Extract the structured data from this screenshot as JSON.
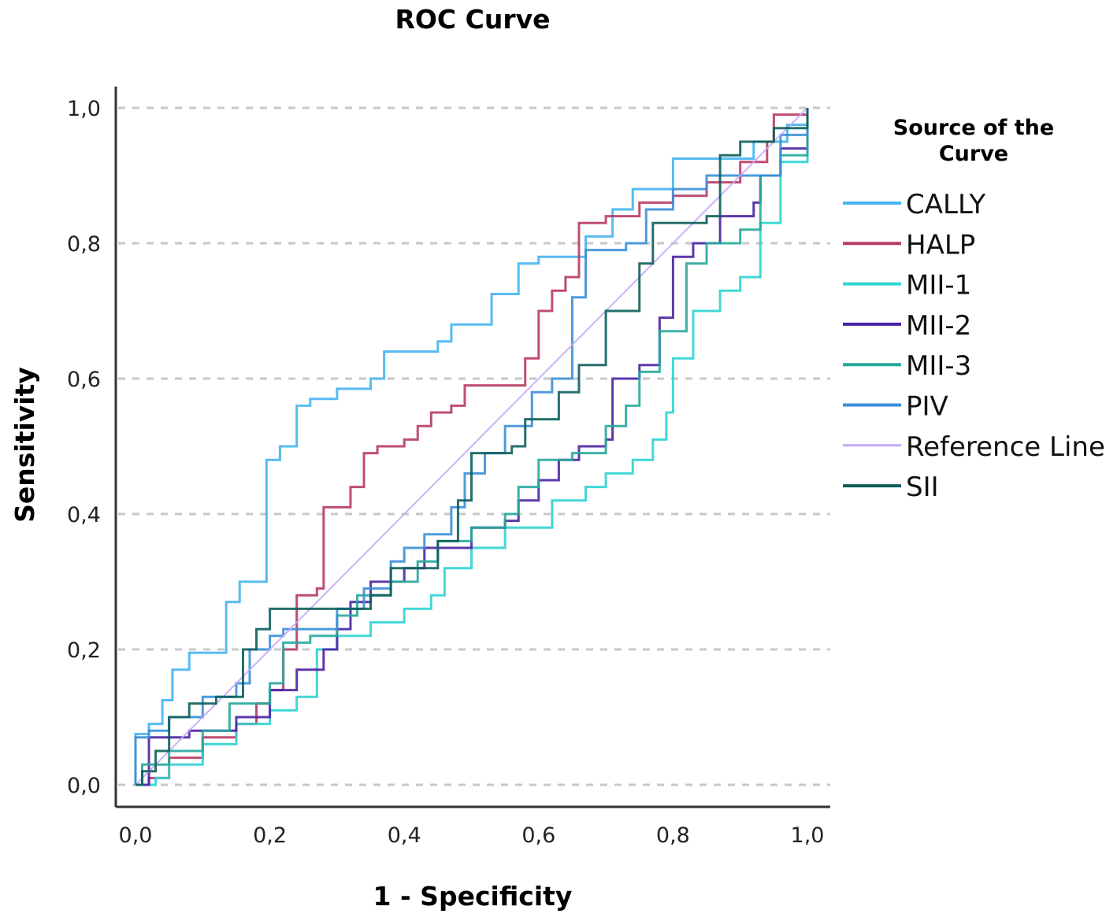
{
  "chart_data": {
    "type": "line",
    "title": "ROC Curve",
    "xlabel": "1 - Specificity",
    "ylabel": "Sensitivity",
    "xlim": [
      0,
      1
    ],
    "ylim": [
      0,
      1
    ],
    "x_ticks": [
      "0,0",
      "0,2",
      "0,4",
      "0,6",
      "0,8",
      "1,0"
    ],
    "y_ticks": [
      "0,0",
      "0,2",
      "0,4",
      "0,6",
      "0,8",
      "1,0"
    ],
    "grid": "horizontal dashed",
    "legend_title": [
      "Source of the",
      "Curve"
    ],
    "legend_position": "right",
    "series": [
      {
        "name": "CALLY",
        "color": "#45b4f2",
        "points": [
          [
            0,
            0
          ],
          [
            0,
            0.075
          ],
          [
            0.02,
            0.09
          ],
          [
            0.04,
            0.125
          ],
          [
            0.055,
            0.17
          ],
          [
            0.08,
            0.195
          ],
          [
            0.135,
            0.27
          ],
          [
            0.155,
            0.3
          ],
          [
            0.195,
            0.48
          ],
          [
            0.215,
            0.5
          ],
          [
            0.24,
            0.56
          ],
          [
            0.26,
            0.57
          ],
          [
            0.3,
            0.585
          ],
          [
            0.35,
            0.6
          ],
          [
            0.37,
            0.64
          ],
          [
            0.45,
            0.655
          ],
          [
            0.47,
            0.68
          ],
          [
            0.53,
            0.725
          ],
          [
            0.57,
            0.77
          ],
          [
            0.6,
            0.78
          ],
          [
            0.67,
            0.81
          ],
          [
            0.71,
            0.85
          ],
          [
            0.74,
            0.88
          ],
          [
            0.8,
            0.925
          ],
          [
            0.88,
            0.925
          ],
          [
            0.92,
            0.95
          ],
          [
            0.97,
            0.975
          ],
          [
            1,
            1
          ]
        ]
      },
      {
        "name": "HALP",
        "color": "#b83a64",
        "points": [
          [
            0,
            0
          ],
          [
            0.02,
            0.01
          ],
          [
            0.05,
            0.04
          ],
          [
            0.1,
            0.07
          ],
          [
            0.15,
            0.09
          ],
          [
            0.18,
            0.12
          ],
          [
            0.2,
            0.14
          ],
          [
            0.22,
            0.2
          ],
          [
            0.24,
            0.28
          ],
          [
            0.27,
            0.29
          ],
          [
            0.28,
            0.41
          ],
          [
            0.32,
            0.44
          ],
          [
            0.34,
            0.49
          ],
          [
            0.36,
            0.5
          ],
          [
            0.4,
            0.51
          ],
          [
            0.42,
            0.53
          ],
          [
            0.44,
            0.55
          ],
          [
            0.47,
            0.56
          ],
          [
            0.49,
            0.59
          ],
          [
            0.57,
            0.59
          ],
          [
            0.58,
            0.63
          ],
          [
            0.6,
            0.7
          ],
          [
            0.62,
            0.73
          ],
          [
            0.64,
            0.75
          ],
          [
            0.66,
            0.83
          ],
          [
            0.7,
            0.84
          ],
          [
            0.75,
            0.86
          ],
          [
            0.8,
            0.87
          ],
          [
            0.85,
            0.89
          ],
          [
            0.9,
            0.92
          ],
          [
            0.94,
            0.95
          ],
          [
            0.95,
            0.99
          ],
          [
            1,
            1
          ]
        ]
      },
      {
        "name": "MII-1",
        "color": "#2fd3d3",
        "points": [
          [
            0,
            0
          ],
          [
            0.03,
            0.01
          ],
          [
            0.05,
            0.03
          ],
          [
            0.1,
            0.06
          ],
          [
            0.15,
            0.09
          ],
          [
            0.2,
            0.11
          ],
          [
            0.24,
            0.13
          ],
          [
            0.27,
            0.2
          ],
          [
            0.3,
            0.22
          ],
          [
            0.35,
            0.24
          ],
          [
            0.4,
            0.26
          ],
          [
            0.44,
            0.28
          ],
          [
            0.46,
            0.32
          ],
          [
            0.5,
            0.35
          ],
          [
            0.55,
            0.38
          ],
          [
            0.6,
            0.38
          ],
          [
            0.62,
            0.42
          ],
          [
            0.67,
            0.44
          ],
          [
            0.7,
            0.46
          ],
          [
            0.74,
            0.48
          ],
          [
            0.77,
            0.51
          ],
          [
            0.79,
            0.55
          ],
          [
            0.8,
            0.63
          ],
          [
            0.83,
            0.7
          ],
          [
            0.87,
            0.73
          ],
          [
            0.9,
            0.75
          ],
          [
            0.93,
            0.83
          ],
          [
            0.96,
            0.92
          ],
          [
            1,
            0.95
          ]
        ]
      },
      {
        "name": "MII-2",
        "color": "#4b22a3",
        "points": [
          [
            0,
            0
          ],
          [
            0.02,
            0.07
          ],
          [
            0.08,
            0.08
          ],
          [
            0.15,
            0.1
          ],
          [
            0.2,
            0.14
          ],
          [
            0.24,
            0.17
          ],
          [
            0.28,
            0.2
          ],
          [
            0.3,
            0.23
          ],
          [
            0.32,
            0.27
          ],
          [
            0.35,
            0.3
          ],
          [
            0.4,
            0.32
          ],
          [
            0.43,
            0.35
          ],
          [
            0.5,
            0.38
          ],
          [
            0.55,
            0.39
          ],
          [
            0.57,
            0.42
          ],
          [
            0.6,
            0.45
          ],
          [
            0.63,
            0.48
          ],
          [
            0.66,
            0.5
          ],
          [
            0.7,
            0.51
          ],
          [
            0.71,
            0.6
          ],
          [
            0.75,
            0.62
          ],
          [
            0.78,
            0.69
          ],
          [
            0.8,
            0.78
          ],
          [
            0.83,
            0.8
          ],
          [
            0.87,
            0.84
          ],
          [
            0.92,
            0.86
          ],
          [
            0.93,
            0.9
          ],
          [
            0.96,
            0.94
          ],
          [
            1,
            1
          ]
        ]
      },
      {
        "name": "MII-3",
        "color": "#27a89c",
        "points": [
          [
            0,
            0
          ],
          [
            0.01,
            0.03
          ],
          [
            0.05,
            0.05
          ],
          [
            0.1,
            0.08
          ],
          [
            0.14,
            0.12
          ],
          [
            0.2,
            0.15
          ],
          [
            0.22,
            0.21
          ],
          [
            0.26,
            0.22
          ],
          [
            0.3,
            0.25
          ],
          [
            0.33,
            0.28
          ],
          [
            0.38,
            0.3
          ],
          [
            0.42,
            0.33
          ],
          [
            0.45,
            0.36
          ],
          [
            0.5,
            0.38
          ],
          [
            0.55,
            0.4
          ],
          [
            0.57,
            0.44
          ],
          [
            0.6,
            0.48
          ],
          [
            0.65,
            0.49
          ],
          [
            0.7,
            0.53
          ],
          [
            0.73,
            0.56
          ],
          [
            0.75,
            0.61
          ],
          [
            0.78,
            0.67
          ],
          [
            0.82,
            0.77
          ],
          [
            0.85,
            0.8
          ],
          [
            0.9,
            0.82
          ],
          [
            0.93,
            0.9
          ],
          [
            0.96,
            0.93
          ],
          [
            1,
            0.97
          ]
        ]
      },
      {
        "name": "PIV",
        "color": "#3b8fd8",
        "points": [
          [
            0,
            0
          ],
          [
            0,
            0.07
          ],
          [
            0.02,
            0.08
          ],
          [
            0.05,
            0.1
          ],
          [
            0.1,
            0.13
          ],
          [
            0.15,
            0.15
          ],
          [
            0.17,
            0.2
          ],
          [
            0.2,
            0.22
          ],
          [
            0.22,
            0.23
          ],
          [
            0.3,
            0.26
          ],
          [
            0.34,
            0.29
          ],
          [
            0.38,
            0.33
          ],
          [
            0.4,
            0.35
          ],
          [
            0.43,
            0.37
          ],
          [
            0.47,
            0.41
          ],
          [
            0.49,
            0.46
          ],
          [
            0.52,
            0.49
          ],
          [
            0.55,
            0.53
          ],
          [
            0.59,
            0.58
          ],
          [
            0.62,
            0.6
          ],
          [
            0.65,
            0.72
          ],
          [
            0.67,
            0.79
          ],
          [
            0.73,
            0.8
          ],
          [
            0.76,
            0.85
          ],
          [
            0.8,
            0.88
          ],
          [
            0.85,
            0.9
          ],
          [
            0.9,
            0.9
          ],
          [
            0.96,
            0.96
          ],
          [
            1,
            1
          ]
        ]
      },
      {
        "name": "Reference Line",
        "color": "#c8a8f6",
        "points": [
          [
            0,
            0
          ],
          [
            1,
            1
          ]
        ],
        "diagonal": true
      },
      {
        "name": "SII",
        "color": "#0d5f5c",
        "points": [
          [
            0,
            0
          ],
          [
            0.01,
            0.02
          ],
          [
            0.03,
            0.05
          ],
          [
            0.05,
            0.1
          ],
          [
            0.08,
            0.12
          ],
          [
            0.12,
            0.13
          ],
          [
            0.16,
            0.2
          ],
          [
            0.18,
            0.23
          ],
          [
            0.2,
            0.26
          ],
          [
            0.25,
            0.26
          ],
          [
            0.35,
            0.28
          ],
          [
            0.38,
            0.32
          ],
          [
            0.45,
            0.36
          ],
          [
            0.48,
            0.42
          ],
          [
            0.5,
            0.49
          ],
          [
            0.56,
            0.5
          ],
          [
            0.58,
            0.54
          ],
          [
            0.63,
            0.58
          ],
          [
            0.66,
            0.62
          ],
          [
            0.7,
            0.7
          ],
          [
            0.75,
            0.77
          ],
          [
            0.77,
            0.83
          ],
          [
            0.85,
            0.84
          ],
          [
            0.87,
            0.93
          ],
          [
            0.9,
            0.95
          ],
          [
            0.95,
            0.97
          ],
          [
            1,
            1
          ]
        ]
      }
    ]
  }
}
